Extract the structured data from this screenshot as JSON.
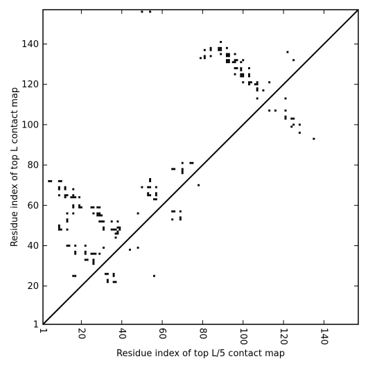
{
  "chart_data": {
    "type": "scatter",
    "title": "",
    "xlabel": "Residue index of top L/5 contact map",
    "ylabel": "Residue index of top L contact map",
    "xlim": [
      1,
      157
    ],
    "ylim": [
      1,
      157
    ],
    "x_ticks": [
      {
        "value": 1,
        "label": "1"
      },
      {
        "value": 20,
        "label": "20"
      },
      {
        "value": 40,
        "label": "40"
      },
      {
        "value": 60,
        "label": "60"
      },
      {
        "value": 80,
        "label": "80"
      },
      {
        "value": 100,
        "label": "100"
      },
      {
        "value": 120,
        "label": "120"
      },
      {
        "value": 140,
        "label": "140"
      }
    ],
    "y_ticks": [
      {
        "value": 1,
        "label": "1"
      },
      {
        "value": 20,
        "label": "20"
      },
      {
        "value": 40,
        "label": "40"
      },
      {
        "value": 60,
        "label": "60"
      },
      {
        "value": 80,
        "label": "80"
      },
      {
        "value": 100,
        "label": "100"
      },
      {
        "value": 120,
        "label": "120"
      },
      {
        "value": 140,
        "label": "140"
      }
    ],
    "diagonal": true,
    "grid": false,
    "marker_color": "#000000",
    "series": [
      {
        "points": [
          [
            4,
            72
          ],
          [
            5,
            72
          ],
          [
            9,
            72
          ],
          [
            10,
            72
          ],
          [
            9,
            69
          ],
          [
            9,
            68
          ],
          [
            12,
            69
          ],
          [
            12,
            68
          ],
          [
            16,
            68
          ],
          [
            17,
            64
          ],
          [
            9,
            65
          ],
          [
            12,
            65
          ],
          [
            13,
            65
          ],
          [
            12,
            64
          ],
          [
            15,
            64
          ],
          [
            16,
            64
          ],
          [
            16,
            65
          ],
          [
            19,
            64
          ],
          [
            16,
            60
          ],
          [
            16,
            59
          ],
          [
            19,
            60
          ],
          [
            19,
            59
          ],
          [
            20,
            59
          ],
          [
            13,
            56
          ],
          [
            13,
            53
          ],
          [
            13,
            52
          ],
          [
            16,
            56
          ],
          [
            9,
            50
          ],
          [
            9,
            49
          ],
          [
            9,
            48
          ],
          [
            10,
            48
          ],
          [
            13,
            48
          ],
          [
            13,
            40
          ],
          [
            14,
            40
          ],
          [
            17,
            40
          ],
          [
            22,
            40
          ],
          [
            17,
            37
          ],
          [
            17,
            36
          ],
          [
            22,
            37
          ],
          [
            22,
            36
          ],
          [
            22,
            33
          ],
          [
            23,
            33
          ],
          [
            26,
            33
          ],
          [
            26,
            32
          ],
          [
            26,
            31
          ],
          [
            16,
            25
          ],
          [
            17,
            25
          ],
          [
            25,
            59
          ],
          [
            26,
            59
          ],
          [
            28,
            59
          ],
          [
            29,
            59
          ],
          [
            26,
            56
          ],
          [
            28,
            56
          ],
          [
            28,
            55
          ],
          [
            29,
            56
          ],
          [
            29,
            55
          ],
          [
            30,
            55
          ],
          [
            29,
            52
          ],
          [
            30,
            52
          ],
          [
            31,
            52
          ],
          [
            31,
            49
          ],
          [
            31,
            48
          ],
          [
            25,
            36
          ],
          [
            26,
            36
          ],
          [
            27,
            36
          ],
          [
            29,
            36
          ],
          [
            31,
            39
          ],
          [
            32,
            26
          ],
          [
            33,
            26
          ],
          [
            33,
            23
          ],
          [
            33,
            22
          ],
          [
            36,
            26
          ],
          [
            36,
            25
          ],
          [
            36,
            22
          ],
          [
            37,
            22
          ],
          [
            35,
            52
          ],
          [
            38,
            52
          ],
          [
            35,
            48
          ],
          [
            36,
            48
          ],
          [
            37,
            48
          ],
          [
            38,
            49
          ],
          [
            38,
            47
          ],
          [
            38,
            46
          ],
          [
            39,
            49
          ],
          [
            39,
            48
          ],
          [
            37,
            46
          ],
          [
            37,
            44
          ],
          [
            44,
            38
          ],
          [
            48,
            39
          ],
          [
            48,
            56
          ],
          [
            50,
            69
          ],
          [
            53,
            69
          ],
          [
            54,
            69
          ],
          [
            57,
            69
          ],
          [
            53,
            66
          ],
          [
            53,
            65
          ],
          [
            54,
            65
          ],
          [
            57,
            66
          ],
          [
            57,
            65
          ],
          [
            54,
            73
          ],
          [
            54,
            72
          ],
          [
            56,
            63
          ],
          [
            57,
            63
          ],
          [
            56,
            25
          ],
          [
            65,
            78
          ],
          [
            66,
            78
          ],
          [
            65,
            57
          ],
          [
            66,
            57
          ],
          [
            65,
            53
          ],
          [
            69,
            57
          ],
          [
            69,
            54
          ],
          [
            69,
            53
          ],
          [
            70,
            81
          ],
          [
            70,
            78
          ],
          [
            70,
            77
          ],
          [
            70,
            76
          ],
          [
            74,
            81
          ],
          [
            75,
            81
          ],
          [
            78,
            70
          ],
          [
            50,
            156
          ],
          [
            54,
            156
          ],
          [
            79,
            133
          ],
          [
            81,
            133
          ],
          [
            81,
            134
          ],
          [
            81,
            137
          ],
          [
            84,
            137
          ],
          [
            84,
            138
          ],
          [
            84,
            134
          ],
          [
            88,
            138
          ],
          [
            88,
            137
          ],
          [
            89,
            138
          ],
          [
            89,
            137
          ],
          [
            89,
            141
          ],
          [
            89,
            135
          ],
          [
            92,
            138
          ],
          [
            92,
            135
          ],
          [
            92,
            134
          ],
          [
            92,
            132
          ],
          [
            92,
            131
          ],
          [
            93,
            135
          ],
          [
            93,
            134
          ],
          [
            93,
            132
          ],
          [
            93,
            131
          ],
          [
            95,
            131
          ],
          [
            96,
            135
          ],
          [
            96,
            132
          ],
          [
            96,
            131
          ],
          [
            97,
            132
          ],
          [
            96,
            128
          ],
          [
            97,
            128
          ],
          [
            99,
            128
          ],
          [
            99,
            127
          ],
          [
            96,
            125
          ],
          [
            99,
            125
          ],
          [
            99,
            124
          ],
          [
            100,
            125
          ],
          [
            100,
            124
          ],
          [
            99,
            131
          ],
          [
            100,
            132
          ],
          [
            100,
            121
          ],
          [
            103,
            128
          ],
          [
            103,
            125
          ],
          [
            103,
            124
          ],
          [
            103,
            121
          ],
          [
            103,
            120
          ],
          [
            104,
            121
          ],
          [
            106,
            120
          ],
          [
            107,
            121
          ],
          [
            107,
            120
          ],
          [
            107,
            118
          ],
          [
            107,
            117
          ],
          [
            107,
            113
          ],
          [
            110,
            117
          ],
          [
            113,
            121
          ],
          [
            113,
            107
          ],
          [
            116,
            107
          ],
          [
            121,
            113
          ],
          [
            121,
            107
          ],
          [
            121,
            104
          ],
          [
            121,
            103
          ],
          [
            124,
            103
          ],
          [
            125,
            103
          ],
          [
            122,
            136
          ],
          [
            125,
            132
          ],
          [
            125,
            100
          ],
          [
            124,
            99
          ],
          [
            128,
            100
          ],
          [
            128,
            96
          ],
          [
            135,
            93
          ]
        ]
      }
    ]
  }
}
